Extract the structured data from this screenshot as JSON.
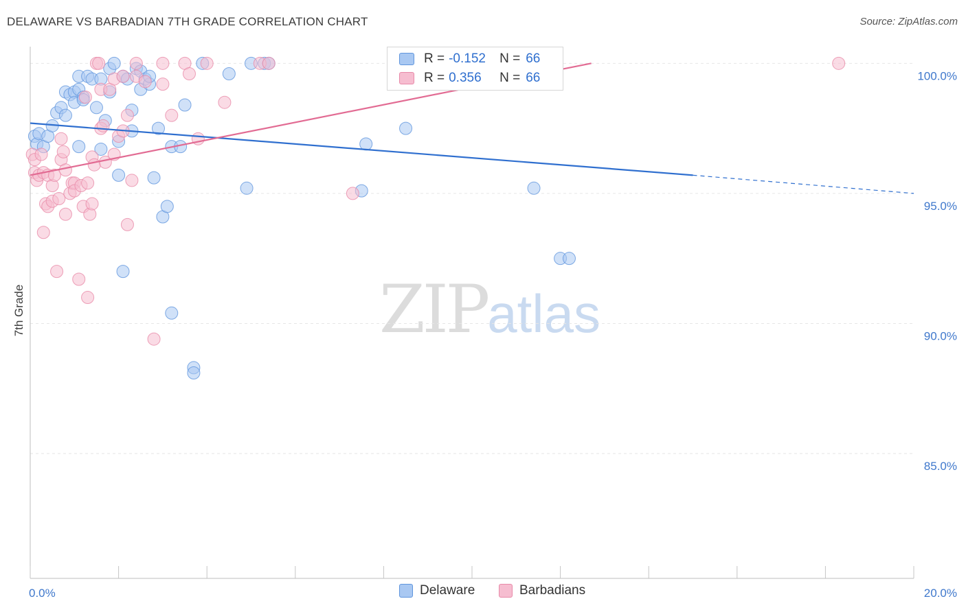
{
  "title": "DELAWARE VS BARBADIAN 7TH GRADE CORRELATION CHART",
  "source": "Source: ZipAtlas.com",
  "watermark": {
    "part1": "ZIP",
    "part2": "atlas"
  },
  "colors": {
    "blue_fill": "#a9c8f2",
    "blue_stroke": "#5f95dd",
    "blue_line": "#2f6fcf",
    "pink_fill": "#f6bdd0",
    "pink_stroke": "#e889a8",
    "pink_line": "#e26b93",
    "axis_text": "#3f78cc",
    "grid": "#e6e6e6"
  },
  "legend": {
    "rows": [
      {
        "r_label": "R =",
        "r_value": "-0.152",
        "n_label": "N =",
        "n_value": "66"
      },
      {
        "r_label": "R =",
        "r_value": "0.356",
        "n_label": "N =",
        "n_value": "66"
      }
    ]
  },
  "bottom_legend": {
    "delaware": "Delaware",
    "barbadians": "Barbadians"
  },
  "chart_data": {
    "type": "scatter",
    "title": "DELAWARE VS BARBADIAN 7TH GRADE CORRELATION CHART",
    "xlabel": "",
    "ylabel": "7th Grade",
    "xlim": [
      0,
      20
    ],
    "ylim": [
      80.2,
      100.8
    ],
    "x_tick_labels": [
      "0.0%",
      "20.0%"
    ],
    "y_ticks": [
      85,
      90,
      95,
      100
    ],
    "y_tick_labels": [
      "85.0%",
      "90.0%",
      "95.0%",
      "100.0%"
    ],
    "grid": true,
    "series": [
      {
        "name": "Delaware",
        "r": -0.152,
        "n": 66,
        "trend": {
          "x0": 0,
          "y0": 97.7,
          "x1": 15.0,
          "y1": 95.7,
          "dash_to_x": 20,
          "dash_to_y": 95.0
        },
        "points": [
          [
            0.1,
            97.2
          ],
          [
            0.15,
            96.9
          ],
          [
            0.2,
            97.3
          ],
          [
            0.3,
            96.8
          ],
          [
            0.4,
            97.2
          ],
          [
            0.5,
            97.6
          ],
          [
            0.6,
            98.1
          ],
          [
            0.7,
            98.3
          ],
          [
            0.8,
            98.9
          ],
          [
            0.8,
            98.0
          ],
          [
            0.9,
            98.8
          ],
          [
            1.0,
            98.9
          ],
          [
            1.0,
            98.5
          ],
          [
            1.1,
            99.0
          ],
          [
            1.2,
            98.7
          ],
          [
            1.1,
            96.8
          ],
          [
            1.2,
            98.6
          ],
          [
            1.1,
            99.5
          ],
          [
            1.3,
            99.5
          ],
          [
            1.4,
            99.4
          ],
          [
            1.5,
            98.3
          ],
          [
            1.6,
            96.7
          ],
          [
            1.6,
            99.4
          ],
          [
            1.7,
            97.8
          ],
          [
            1.8,
            99.8
          ],
          [
            1.8,
            98.9
          ],
          [
            1.9,
            100.0
          ],
          [
            2.0,
            95.7
          ],
          [
            2.0,
            97.0
          ],
          [
            2.1,
            92.0
          ],
          [
            2.1,
            99.5
          ],
          [
            2.2,
            99.4
          ],
          [
            2.3,
            97.4
          ],
          [
            2.3,
            98.2
          ],
          [
            2.4,
            99.8
          ],
          [
            2.5,
            99.0
          ],
          [
            2.5,
            99.7
          ],
          [
            2.6,
            99.4
          ],
          [
            2.7,
            99.2
          ],
          [
            2.7,
            99.5
          ],
          [
            2.8,
            95.6
          ],
          [
            2.9,
            97.5
          ],
          [
            3.0,
            94.1
          ],
          [
            3.1,
            94.5
          ],
          [
            3.2,
            90.4
          ],
          [
            3.2,
            96.8
          ],
          [
            3.4,
            96.8
          ],
          [
            3.5,
            98.4
          ],
          [
            3.7,
            88.3
          ],
          [
            3.7,
            88.1
          ],
          [
            3.9,
            100.0
          ],
          [
            4.5,
            99.6
          ],
          [
            4.9,
            95.2
          ],
          [
            5.0,
            100.0
          ],
          [
            5.3,
            100.0
          ],
          [
            5.4,
            100.0
          ],
          [
            7.5,
            95.1
          ],
          [
            7.6,
            96.9
          ],
          [
            8.5,
            97.5
          ],
          [
            10.1,
            100.0
          ],
          [
            10.3,
            100.0
          ],
          [
            10.4,
            100.0
          ],
          [
            11.4,
            95.2
          ],
          [
            11.1,
            100.0
          ],
          [
            12.0,
            92.5
          ],
          [
            12.2,
            92.5
          ]
        ]
      },
      {
        "name": "Barbadians",
        "r": 0.356,
        "n": 66,
        "trend": {
          "x0": 0,
          "y0": 95.7,
          "x1": 12.7,
          "y1": 100.0
        },
        "points": [
          [
            0.05,
            96.5
          ],
          [
            0.1,
            96.3
          ],
          [
            0.1,
            95.8
          ],
          [
            0.15,
            95.5
          ],
          [
            0.2,
            95.7
          ],
          [
            0.25,
            96.5
          ],
          [
            0.3,
            93.5
          ],
          [
            0.3,
            95.8
          ],
          [
            0.35,
            94.6
          ],
          [
            0.4,
            94.5
          ],
          [
            0.4,
            95.7
          ],
          [
            0.5,
            94.7
          ],
          [
            0.5,
            95.3
          ],
          [
            0.55,
            95.7
          ],
          [
            0.6,
            92.0
          ],
          [
            0.65,
            94.8
          ],
          [
            0.7,
            97.1
          ],
          [
            0.7,
            96.3
          ],
          [
            0.75,
            96.6
          ],
          [
            0.8,
            94.2
          ],
          [
            0.8,
            95.9
          ],
          [
            0.9,
            95.0
          ],
          [
            0.95,
            95.4
          ],
          [
            1.0,
            95.4
          ],
          [
            1.0,
            95.1
          ],
          [
            1.1,
            91.7
          ],
          [
            1.15,
            95.3
          ],
          [
            1.2,
            94.5
          ],
          [
            1.25,
            98.7
          ],
          [
            1.3,
            91.0
          ],
          [
            1.3,
            95.4
          ],
          [
            1.35,
            94.2
          ],
          [
            1.4,
            96.4
          ],
          [
            1.4,
            94.6
          ],
          [
            1.45,
            96.1
          ],
          [
            1.5,
            100.0
          ],
          [
            1.55,
            100.0
          ],
          [
            1.6,
            99.0
          ],
          [
            1.6,
            97.5
          ],
          [
            1.65,
            97.6
          ],
          [
            1.7,
            96.2
          ],
          [
            1.8,
            99.0
          ],
          [
            1.9,
            99.4
          ],
          [
            1.9,
            96.5
          ],
          [
            2.0,
            97.2
          ],
          [
            2.1,
            97.4
          ],
          [
            2.1,
            99.5
          ],
          [
            2.2,
            98.0
          ],
          [
            2.2,
            93.8
          ],
          [
            2.3,
            95.5
          ],
          [
            2.4,
            99.5
          ],
          [
            2.4,
            100.0
          ],
          [
            2.6,
            99.3
          ],
          [
            2.8,
            89.4
          ],
          [
            3.0,
            99.2
          ],
          [
            3.0,
            100.0
          ],
          [
            3.2,
            98.0
          ],
          [
            3.5,
            100.0
          ],
          [
            3.6,
            99.6
          ],
          [
            3.8,
            97.1
          ],
          [
            4.0,
            100.0
          ],
          [
            4.4,
            98.5
          ],
          [
            5.2,
            100.0
          ],
          [
            5.4,
            100.0
          ],
          [
            7.3,
            95.0
          ],
          [
            18.3,
            100.0
          ]
        ]
      }
    ]
  }
}
